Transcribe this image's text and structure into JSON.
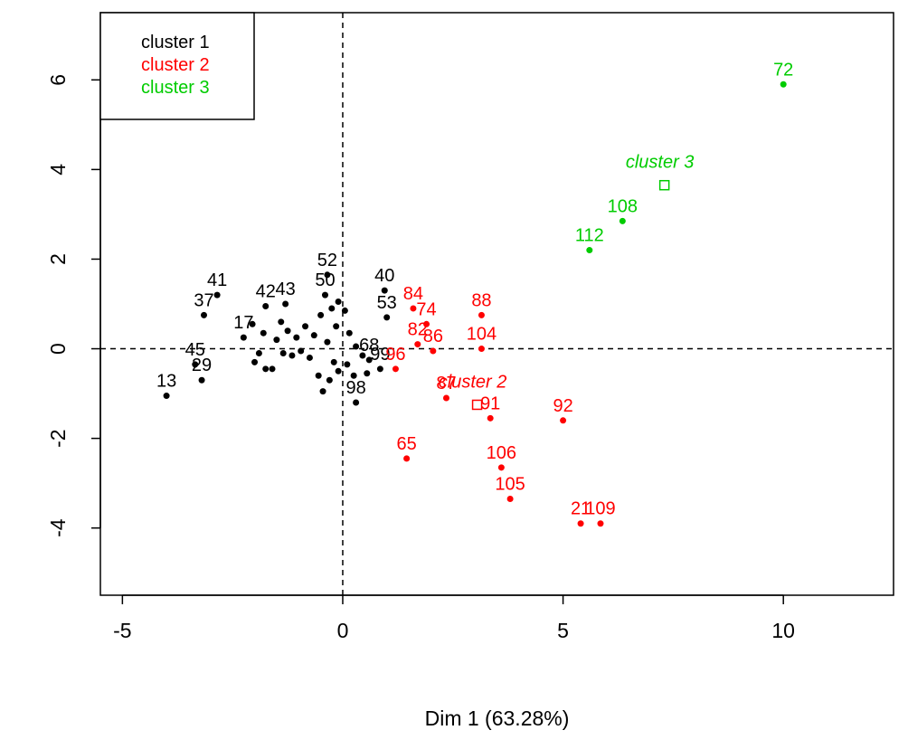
{
  "chart_data": {
    "type": "scatter",
    "title": "",
    "xlabel": "Dim 1 (63.28%)",
    "ylabel": "",
    "xlim": [
      -5.5,
      12.5
    ],
    "ylim": [
      -5.5,
      7.5
    ],
    "x_ticks": [
      -5,
      0,
      5,
      10
    ],
    "x_tick_labels": [
      "-5",
      "0",
      "5",
      "10"
    ],
    "y_ticks": [
      -4,
      -2,
      0,
      2,
      4,
      6
    ],
    "y_tick_labels": [
      "-4",
      "-2",
      "0",
      "2",
      "4",
      "6"
    ],
    "reference_lines": {
      "x": 0,
      "y": 0,
      "style": "dashed"
    },
    "grid": false,
    "legend": {
      "position": "top-left",
      "entries": [
        "cluster 1",
        "cluster 2",
        "cluster 3"
      ]
    },
    "colors": {
      "cluster 1": "#000000",
      "cluster 2": "#ff0000",
      "cluster 3": "#00cc00"
    },
    "series": [
      {
        "name": "cluster 1",
        "color": "#000000",
        "points": [
          {
            "label": "13",
            "x": -4.0,
            "y": -1.05
          },
          {
            "label": "29",
            "x": -3.2,
            "y": -0.7
          },
          {
            "label": "45",
            "x": -3.35,
            "y": -0.35
          },
          {
            "label": "37",
            "x": -3.15,
            "y": 0.75
          },
          {
            "label": "41",
            "x": -2.85,
            "y": 1.2
          },
          {
            "label": "17",
            "x": -2.25,
            "y": 0.25
          },
          {
            "label": "",
            "x": -2.05,
            "y": 0.55
          },
          {
            "label": "",
            "x": -1.9,
            "y": -0.1
          },
          {
            "label": "",
            "x": -1.8,
            "y": 0.35
          },
          {
            "label": "",
            "x": -1.6,
            "y": -0.45
          },
          {
            "label": "",
            "x": -1.75,
            "y": -0.45
          },
          {
            "label": "",
            "x": -2.0,
            "y": -0.3
          },
          {
            "label": "",
            "x": -1.5,
            "y": 0.2
          },
          {
            "label": "",
            "x": -1.4,
            "y": 0.6
          },
          {
            "label": "",
            "x": -1.35,
            "y": -0.1
          },
          {
            "label": "",
            "x": -1.25,
            "y": 0.4
          },
          {
            "label": "",
            "x": -1.15,
            "y": -0.15
          },
          {
            "label": "",
            "x": -1.05,
            "y": 0.25
          },
          {
            "label": "",
            "x": -0.95,
            "y": -0.05
          },
          {
            "label": "",
            "x": -0.85,
            "y": 0.5
          },
          {
            "label": "",
            "x": -0.75,
            "y": -0.2
          },
          {
            "label": "",
            "x": -0.65,
            "y": 0.3
          },
          {
            "label": "",
            "x": -0.55,
            "y": -0.6
          },
          {
            "label": "",
            "x": -0.5,
            "y": 0.75
          },
          {
            "label": "",
            "x": -0.45,
            "y": -0.95
          },
          {
            "label": "",
            "x": -0.35,
            "y": 0.15
          },
          {
            "label": "",
            "x": -0.3,
            "y": -0.7
          },
          {
            "label": "",
            "x": -0.25,
            "y": 0.9
          },
          {
            "label": "",
            "x": -0.2,
            "y": -0.3
          },
          {
            "label": "",
            "x": -0.15,
            "y": 0.5
          },
          {
            "label": "",
            "x": -0.1,
            "y": -0.5
          },
          {
            "label": "42",
            "x": -1.75,
            "y": 0.95
          },
          {
            "label": "43",
            "x": -1.3,
            "y": 1.0
          },
          {
            "label": "52",
            "x": -0.35,
            "y": 1.65
          },
          {
            "label": "50",
            "x": -0.4,
            "y": 1.2
          },
          {
            "label": "",
            "x": -0.1,
            "y": 1.05
          },
          {
            "label": "",
            "x": 0.05,
            "y": 0.85
          },
          {
            "label": "",
            "x": 0.15,
            "y": 0.35
          },
          {
            "label": "",
            "x": 0.1,
            "y": -0.35
          },
          {
            "label": "",
            "x": 0.25,
            "y": -0.6
          },
          {
            "label": "",
            "x": 0.3,
            "y": 0.05
          },
          {
            "label": "",
            "x": 0.45,
            "y": -0.15
          },
          {
            "label": "",
            "x": 0.55,
            "y": -0.55
          },
          {
            "label": "98",
            "x": 0.3,
            "y": -1.2
          },
          {
            "label": "68",
            "x": 0.6,
            "y": -0.25
          },
          {
            "label": "99",
            "x": 0.85,
            "y": -0.45
          },
          {
            "label": "40",
            "x": 0.95,
            "y": 1.3
          },
          {
            "label": "53",
            "x": 1.0,
            "y": 0.7
          }
        ]
      },
      {
        "name": "cluster 2",
        "color": "#ff0000",
        "points": [
          {
            "label": "84",
            "x": 1.6,
            "y": 0.9
          },
          {
            "label": "74",
            "x": 1.9,
            "y": 0.55
          },
          {
            "label": "82",
            "x": 1.7,
            "y": 0.1
          },
          {
            "label": "86",
            "x": 2.05,
            "y": -0.05
          },
          {
            "label": "96",
            "x": 1.2,
            "y": -0.45
          },
          {
            "label": "88",
            "x": 3.15,
            "y": 0.75
          },
          {
            "label": "104",
            "x": 3.15,
            "y": 0.0
          },
          {
            "label": "87",
            "x": 2.35,
            "y": -1.1
          },
          {
            "label": "91",
            "x": 3.35,
            "y": -1.55
          },
          {
            "label": "65",
            "x": 1.45,
            "y": -2.45
          },
          {
            "label": "92",
            "x": 5.0,
            "y": -1.6
          },
          {
            "label": "106",
            "x": 3.6,
            "y": -2.65
          },
          {
            "label": "105",
            "x": 3.8,
            "y": -3.35
          },
          {
            "label": "21",
            "x": 5.4,
            "y": -3.9
          },
          {
            "label": "109",
            "x": 5.85,
            "y": -3.9
          }
        ],
        "center": {
          "label": "cluster 2",
          "x": 3.05,
          "y": -1.25
        }
      },
      {
        "name": "cluster 3",
        "color": "#00cc00",
        "points": [
          {
            "label": "72",
            "x": 10.0,
            "y": 5.9
          },
          {
            "label": "108",
            "x": 6.35,
            "y": 2.85
          },
          {
            "label": "112",
            "x": 5.6,
            "y": 2.2
          }
        ],
        "center": {
          "label": "cluster 3",
          "x": 7.3,
          "y": 3.65
        }
      }
    ]
  }
}
